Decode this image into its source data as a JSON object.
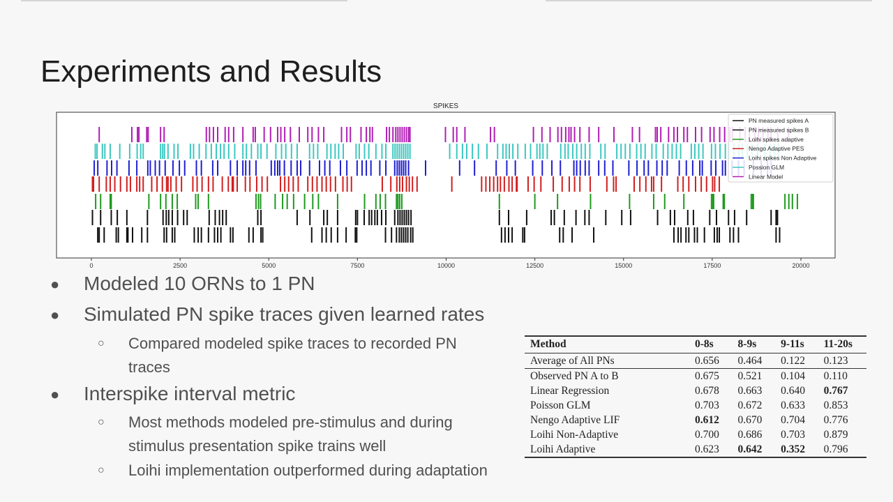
{
  "slide": {
    "title": "Experiments and Results"
  },
  "chart_data": {
    "type": "raster",
    "title": "SPIKES",
    "xlim": [
      0,
      20000
    ],
    "xticks": [
      0,
      2500,
      5000,
      7500,
      10000,
      12500,
      15000,
      17500,
      20000
    ],
    "legend_position": "top-right",
    "series": [
      {
        "name": "PN measured spikes A",
        "color": "#111111",
        "spikes": [
          180,
          220,
          360,
          700,
          760,
          1000,
          1030,
          1160,
          1420,
          1580,
          2050,
          2120,
          2280,
          2350,
          2900,
          3010,
          3100,
          3300,
          3470,
          3560,
          3650,
          3920,
          3990,
          4440,
          4560,
          4780,
          4830,
          6210,
          6500,
          6620,
          6760,
          6940,
          7180,
          7440,
          7480,
          8290,
          8460,
          8600,
          8680,
          8740,
          8800,
          8860,
          8920,
          9000,
          9060,
          11560,
          11660,
          11760,
          11860,
          12160,
          12210,
          13200,
          13300,
          13550,
          14160,
          16420,
          16540,
          16620,
          16760,
          16840,
          17000,
          17080,
          17280,
          17560,
          17640,
          17700,
          18000,
          18100,
          18240,
          19300,
          19400
        ]
      },
      {
        "name": "PN measured spikes B",
        "color": "#111111",
        "spikes": [
          30,
          260,
          560,
          730,
          1000,
          1580,
          2020,
          2110,
          2180,
          2280,
          2430,
          2600,
          2700,
          3320,
          3490,
          3610,
          3700,
          3800,
          4690,
          4780,
          5800,
          6160,
          6550,
          6650,
          6940,
          7450,
          7500,
          7690,
          7830,
          7900,
          7990,
          8060,
          8180,
          8300,
          8550,
          8640,
          8700,
          8760,
          8820,
          8880,
          8940,
          9010,
          11500,
          11760,
          12270,
          12960,
          13050,
          13330,
          13660,
          13910,
          14030,
          14500,
          14950,
          15200,
          15960,
          16320,
          16440,
          16810,
          16970,
          17430,
          17620,
          17960,
          18130,
          18470,
          19160,
          19300,
          19340
        ]
      },
      {
        "name": "Loihi spikes adaptive",
        "color": "#1e9a1e",
        "spikes": [
          120,
          260,
          530,
          560,
          1620,
          1950,
          2100,
          2280,
          2420,
          2940,
          3010,
          3300,
          4640,
          4710,
          4770,
          5180,
          5390,
          5520,
          5700,
          6010,
          6240,
          6400,
          6940,
          7700,
          8020,
          8140,
          8290,
          8600,
          8640,
          8690,
          8750,
          11500,
          12500,
          13140,
          14070,
          15170,
          15850,
          16160,
          16700,
          17480,
          17520,
          17540,
          17810,
          17840,
          18600,
          18640,
          18660,
          19550,
          19660,
          19760,
          19900
        ]
      },
      {
        "name": "Nengo Adaptive PES",
        "color": "#d21e1e",
        "spikes": [
          30,
          60,
          220,
          420,
          530,
          660,
          820,
          1000,
          1100,
          1280,
          1360,
          1460,
          1700,
          1850,
          2000,
          2120,
          2160,
          2240,
          2390,
          2540,
          2860,
          2980,
          3120,
          3300,
          3430,
          3690,
          3860,
          3970,
          4000,
          4110,
          4340,
          4470,
          4660,
          4810,
          4960,
          5330,
          5450,
          5560,
          5690,
          5830,
          6100,
          6230,
          6360,
          6500,
          6620,
          6740,
          6880,
          7090,
          7210,
          7330,
          8200,
          8440,
          8610,
          8690,
          8770,
          8880,
          8960,
          9050,
          9180,
          10160,
          11000,
          11120,
          11230,
          11340,
          11450,
          11530,
          11640,
          11770,
          11860,
          11980,
          12000,
          12310,
          12480,
          12670,
          13020,
          13270,
          13470,
          13620,
          13770,
          14060,
          14530,
          14720,
          14790,
          15300,
          15460,
          15630,
          15790,
          15850,
          16070,
          16530,
          16680,
          16840,
          17030,
          17190,
          17340,
          17510,
          17570,
          17700
        ]
      },
      {
        "name": "Loihi spikes Non Adaptive",
        "color": "#1e1ed2",
        "spikes": [
          80,
          180,
          440,
          570,
          720,
          1060,
          1280,
          1590,
          1660,
          1800,
          1920,
          2080,
          2300,
          2480,
          2630,
          2960,
          3100,
          3420,
          3560,
          3920,
          4110,
          4270,
          4350,
          4460,
          4640,
          5070,
          5170,
          5250,
          5310,
          5440,
          5630,
          5800,
          5900,
          6150,
          6430,
          6580,
          6720,
          7020,
          7200,
          7490,
          7630,
          7750,
          7880,
          8130,
          8300,
          8550,
          8620,
          8680,
          8740,
          8800,
          8860,
          8940,
          9420,
          10380,
          10800,
          11410,
          11710,
          11950,
          12440,
          12710,
          12980,
          13220,
          13600,
          13680,
          13780,
          13920,
          14030,
          14300,
          14470,
          14700,
          15150,
          15380,
          15580,
          15700,
          15940,
          16090,
          16230,
          16570,
          16770,
          16950,
          17150,
          17220,
          17470,
          17600,
          17790,
          17870,
          18060,
          18240,
          18400,
          18660,
          18880,
          19060,
          19160
        ]
      },
      {
        "name": "Possion GLM",
        "color": "#3cc8c0",
        "spikes": [
          110,
          160,
          310,
          380,
          530,
          800,
          1080,
          1290,
          1390,
          1460,
          1950,
          2010,
          2060,
          2160,
          2330,
          2440,
          2790,
          2880,
          3040,
          3230,
          3380,
          3520,
          3640,
          3740,
          3870,
          4040,
          4270,
          4370,
          4510,
          4690,
          4780,
          4950,
          5200,
          5360,
          5480,
          5640,
          5800,
          6150,
          6260,
          6380,
          6640,
          6750,
          6870,
          6970,
          7100,
          7460,
          7550,
          7700,
          7820,
          8020,
          8190,
          8300,
          8500,
          8560,
          8620,
          8680,
          8740,
          8800,
          8860,
          8920,
          8980,
          10100,
          10300,
          10460,
          10580,
          10740,
          10910,
          11150,
          11450,
          11600,
          11690,
          11780,
          11880,
          12020,
          12230,
          12380,
          12560,
          12640,
          12730,
          12850,
          13230,
          13350,
          13440,
          13570,
          13680,
          13810,
          13920,
          14050,
          14360,
          14480,
          14810,
          14930,
          15050,
          15180,
          15370,
          15490,
          15610,
          15800,
          15920,
          16120,
          16250,
          16370,
          16490,
          16610,
          16910,
          17010,
          17120,
          17240,
          17480,
          17590,
          17720,
          17870,
          17970,
          18110,
          18250,
          18350,
          18490,
          18620,
          18780,
          18980,
          19130,
          19260,
          19360
        ]
      },
      {
        "name": "Linear Model",
        "color": "#b01eb4",
        "spikes": [
          220,
          1140,
          1300,
          1340,
          1560,
          1600,
          1950,
          2050,
          3240,
          3330,
          3440,
          3560,
          3770,
          3870,
          4010,
          4270,
          4560,
          4620,
          4870,
          5050,
          5250,
          5340,
          5450,
          5610,
          5860,
          6100,
          6220,
          6400,
          6550,
          7050,
          7200,
          7300,
          7600,
          7750,
          7850,
          7920,
          8320,
          8400,
          8500,
          8580,
          8640,
          8700,
          8760,
          8820,
          8880,
          8940,
          8980,
          9980,
          10200,
          10300,
          10530,
          11250,
          11360,
          12460,
          12700,
          12930,
          13150,
          13250,
          13370,
          13460,
          13520,
          13620,
          13770,
          14030,
          14300,
          14730,
          15250,
          15450,
          15900,
          15950,
          16050,
          16270,
          16420,
          16520,
          16700,
          16800,
          17030,
          17200,
          17440,
          17550,
          17710,
          17850,
          18000,
          18070,
          18280,
          18430,
          18550,
          18700,
          18800,
          18930,
          19070,
          19160,
          19350,
          19650
        ]
      }
    ]
  },
  "bullets": {
    "b1": "Modeled 10 ORNs to 1 PN",
    "b2": "Simulated PN spike traces given learned rates",
    "b2_sub1_line1": "Compared modeled spike traces to recorded PN",
    "b2_sub1_line2": "traces",
    "b3": "Interspike interval metric",
    "b3_sub1_line1": "Most methods modeled pre-stimulus and during",
    "b3_sub1_line2": "stimulus presentation spike trains well",
    "b3_sub2": "Loihi implementation outperformed during adaptation",
    "dot": "●",
    "circle": "○"
  },
  "table": {
    "headers": [
      "Method",
      "0-8s",
      "8-9s",
      "9-11s",
      "11-20s"
    ],
    "rows": [
      {
        "cells": [
          "Average of All PNs",
          "0.656",
          "0.464",
          "0.122",
          "0.123"
        ],
        "bold": []
      },
      {
        "cells": [
          "Observed PN A to B",
          "0.675",
          "0.521",
          "0.104",
          "0.110"
        ],
        "bold": []
      },
      {
        "cells": [
          "Linear Regression",
          "0.678",
          "0.663",
          "0.640",
          "0.767"
        ],
        "bold": [
          4
        ]
      },
      {
        "cells": [
          "Poisson GLM",
          "0.703",
          "0.672",
          "0.633",
          "0.853"
        ],
        "bold": []
      },
      {
        "cells": [
          "Nengo Adaptive LIF",
          "0.612",
          "0.670",
          "0.704",
          "0.776"
        ],
        "bold": [
          1
        ]
      },
      {
        "cells": [
          "Loihi Non-Adaptive",
          "0.700",
          "0.686",
          "0.703",
          "0.879"
        ],
        "bold": []
      },
      {
        "cells": [
          "Loihi Adaptive",
          "0.623",
          "0.642",
          "0.352",
          "0.796"
        ],
        "bold": [
          2,
          3
        ]
      }
    ]
  }
}
